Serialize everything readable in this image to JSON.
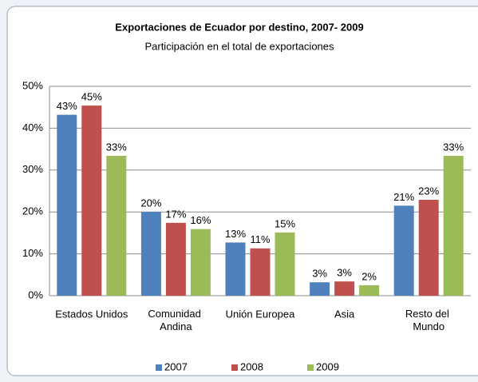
{
  "chart_data": {
    "type": "bar",
    "title": "Exportaciones de Ecuador por destino, 2007- 2009",
    "subtitle": "Participación en el total de exportaciones",
    "categories": [
      "Estados Unidos",
      "Comunidad Andina",
      "Unión Europea",
      "Asia",
      "Resto del Mundo"
    ],
    "series": [
      {
        "name": "2007",
        "color": "#4f81bd",
        "values": [
          43.2,
          20.0,
          12.7,
          3.2,
          21.5
        ],
        "value_labels": [
          "43%",
          "20%",
          "13%",
          "3%",
          "21%"
        ]
      },
      {
        "name": "2008",
        "color": "#c0504d",
        "values": [
          45.4,
          17.4,
          11.3,
          3.4,
          22.9
        ],
        "value_labels": [
          "45%",
          "17%",
          "11%",
          "3%",
          "23%"
        ]
      },
      {
        "name": "2009",
        "color": "#9bbb59",
        "values": [
          33.4,
          15.9,
          15.1,
          2.5,
          33.4
        ],
        "value_labels": [
          "33%",
          "16%",
          "15%",
          "2%",
          "33%"
        ]
      }
    ],
    "ylim": [
      0,
      50
    ],
    "yticks": [
      {
        "value": 0,
        "label": "0%"
      },
      {
        "value": 10,
        "label": "10%"
      },
      {
        "value": 20,
        "label": "20%"
      },
      {
        "value": 30,
        "label": "30%"
      },
      {
        "value": 40,
        "label": "40%"
      },
      {
        "value": 50,
        "label": "50%"
      }
    ],
    "grid": true,
    "legend": "bottom"
  }
}
